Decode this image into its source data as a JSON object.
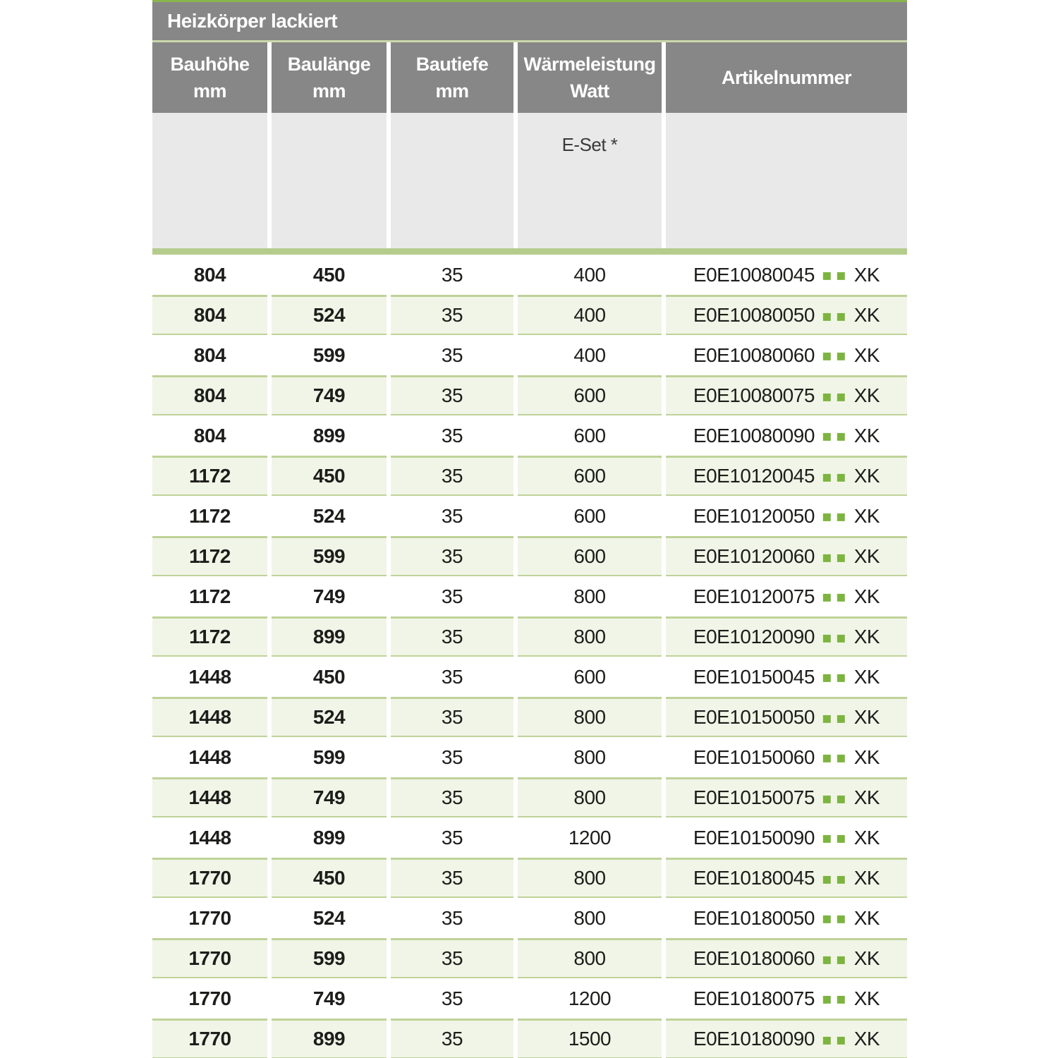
{
  "title": "Heizkörper lackiert",
  "columns": [
    {
      "label": "Bauhöhe",
      "unit": "mm"
    },
    {
      "label": "Baulänge",
      "unit": "mm"
    },
    {
      "label": "Bautiefe",
      "unit": "mm"
    },
    {
      "label": "Wärmeleistung",
      "unit": "Watt"
    },
    {
      "label": "Artikelnummer",
      "unit": ""
    }
  ],
  "subheader": {
    "e_set_label": "E-Set *"
  },
  "artikel_dots": "▪▪",
  "colors": {
    "accent_green": "#8ab44e",
    "divider_green": "#cbd8ab",
    "separator_bar_green": "#b5cc8d",
    "stripe_background": "#f1f5e7",
    "stripe_border": "#bfd298",
    "header_gray": "#878787",
    "subheader_gray": "#e9e9e9",
    "text": "#1d1d1b",
    "dot_green": "#7db440"
  },
  "rows": [
    {
      "bauhoehe": "804",
      "baulaenge": "450",
      "bautiefe": "35",
      "watt": "400",
      "artikel_prefix": "E0E10080045",
      "artikel_suffix": "XK",
      "striped": false
    },
    {
      "bauhoehe": "804",
      "baulaenge": "524",
      "bautiefe": "35",
      "watt": "400",
      "artikel_prefix": "E0E10080050",
      "artikel_suffix": "XK",
      "striped": true
    },
    {
      "bauhoehe": "804",
      "baulaenge": "599",
      "bautiefe": "35",
      "watt": "400",
      "artikel_prefix": "E0E10080060",
      "artikel_suffix": "XK",
      "striped": false
    },
    {
      "bauhoehe": "804",
      "baulaenge": "749",
      "bautiefe": "35",
      "watt": "600",
      "artikel_prefix": "E0E10080075",
      "artikel_suffix": "XK",
      "striped": true
    },
    {
      "bauhoehe": "804",
      "baulaenge": "899",
      "bautiefe": "35",
      "watt": "600",
      "artikel_prefix": "E0E10080090",
      "artikel_suffix": "XK",
      "striped": false
    },
    {
      "bauhoehe": "1172",
      "baulaenge": "450",
      "bautiefe": "35",
      "watt": "600",
      "artikel_prefix": "E0E10120045",
      "artikel_suffix": "XK",
      "striped": true
    },
    {
      "bauhoehe": "1172",
      "baulaenge": "524",
      "bautiefe": "35",
      "watt": "600",
      "artikel_prefix": "E0E10120050",
      "artikel_suffix": "XK",
      "striped": false
    },
    {
      "bauhoehe": "1172",
      "baulaenge": "599",
      "bautiefe": "35",
      "watt": "600",
      "artikel_prefix": "E0E10120060",
      "artikel_suffix": "XK",
      "striped": true
    },
    {
      "bauhoehe": "1172",
      "baulaenge": "749",
      "bautiefe": "35",
      "watt": "800",
      "artikel_prefix": "E0E10120075",
      "artikel_suffix": "XK",
      "striped": false
    },
    {
      "bauhoehe": "1172",
      "baulaenge": "899",
      "bautiefe": "35",
      "watt": "800",
      "artikel_prefix": "E0E10120090",
      "artikel_suffix": "XK",
      "striped": true
    },
    {
      "bauhoehe": "1448",
      "baulaenge": "450",
      "bautiefe": "35",
      "watt": "600",
      "artikel_prefix": "E0E10150045",
      "artikel_suffix": "XK",
      "striped": false
    },
    {
      "bauhoehe": "1448",
      "baulaenge": "524",
      "bautiefe": "35",
      "watt": "800",
      "artikel_prefix": "E0E10150050",
      "artikel_suffix": "XK",
      "striped": true
    },
    {
      "bauhoehe": "1448",
      "baulaenge": "599",
      "bautiefe": "35",
      "watt": "800",
      "artikel_prefix": "E0E10150060",
      "artikel_suffix": "XK",
      "striped": false
    },
    {
      "bauhoehe": "1448",
      "baulaenge": "749",
      "bautiefe": "35",
      "watt": "800",
      "artikel_prefix": "E0E10150075",
      "artikel_suffix": "XK",
      "striped": true
    },
    {
      "bauhoehe": "1448",
      "baulaenge": "899",
      "bautiefe": "35",
      "watt": "1200",
      "artikel_prefix": "E0E10150090",
      "artikel_suffix": "XK",
      "striped": false
    },
    {
      "bauhoehe": "1770",
      "baulaenge": "450",
      "bautiefe": "35",
      "watt": "800",
      "artikel_prefix": "E0E10180045",
      "artikel_suffix": "XK",
      "striped": true
    },
    {
      "bauhoehe": "1770",
      "baulaenge": "524",
      "bautiefe": "35",
      "watt": "800",
      "artikel_prefix": "E0E10180050",
      "artikel_suffix": "XK",
      "striped": false
    },
    {
      "bauhoehe": "1770",
      "baulaenge": "599",
      "bautiefe": "35",
      "watt": "800",
      "artikel_prefix": "E0E10180060",
      "artikel_suffix": "XK",
      "striped": true
    },
    {
      "bauhoehe": "1770",
      "baulaenge": "749",
      "bautiefe": "35",
      "watt": "1200",
      "artikel_prefix": "E0E10180075",
      "artikel_suffix": "XK",
      "striped": false
    },
    {
      "bauhoehe": "1770",
      "baulaenge": "899",
      "bautiefe": "35",
      "watt": "1500",
      "artikel_prefix": "E0E10180090",
      "artikel_suffix": "XK",
      "striped": true
    }
  ]
}
